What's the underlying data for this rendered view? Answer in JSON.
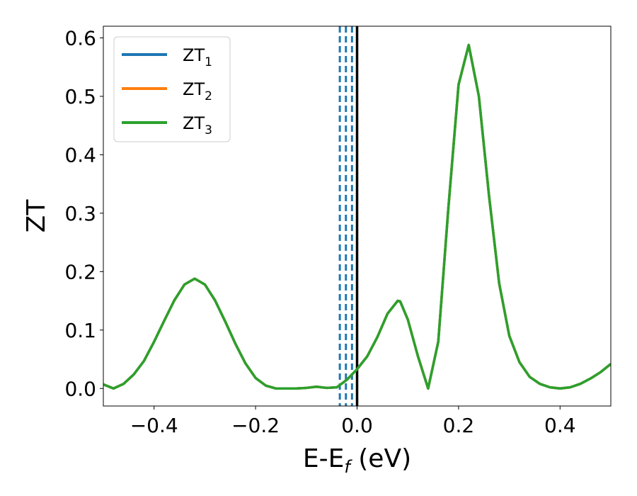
{
  "chart_data": {
    "type": "line",
    "xlabel": "E-E",
    "xlabel_sub": "f",
    "xlabel_unit": " (eV)",
    "ylabel": "ZT",
    "xlim": [
      -0.5,
      0.5
    ],
    "ylim": [
      -0.03,
      0.62
    ],
    "xticks": [
      -0.4,
      -0.2,
      0.0,
      0.2,
      0.4
    ],
    "xtick_labels": [
      "−0.4",
      "−0.2",
      "0.0",
      "0.2",
      "0.4"
    ],
    "yticks": [
      0.0,
      0.1,
      0.2,
      0.3,
      0.4,
      0.5,
      0.6
    ],
    "ytick_labels": [
      "0.0",
      "0.1",
      "0.2",
      "0.3",
      "0.4",
      "0.5",
      "0.6"
    ],
    "grid": false,
    "legend_position": "top-left",
    "x": [
      -0.5,
      -0.48,
      -0.46,
      -0.44,
      -0.42,
      -0.4,
      -0.38,
      -0.36,
      -0.34,
      -0.32,
      -0.3,
      -0.28,
      -0.26,
      -0.24,
      -0.22,
      -0.2,
      -0.18,
      -0.16,
      -0.14,
      -0.12,
      -0.1,
      -0.08,
      -0.06,
      -0.04,
      -0.02,
      0.0,
      0.02,
      0.04,
      0.06,
      0.08,
      0.085,
      0.1,
      0.12,
      0.14,
      0.16,
      0.18,
      0.2,
      0.22,
      0.24,
      0.26,
      0.28,
      0.3,
      0.32,
      0.34,
      0.36,
      0.38,
      0.4,
      0.42,
      0.44,
      0.46,
      0.48,
      0.5
    ],
    "series": [
      {
        "name": "ZT",
        "name_sub": "1",
        "color": "#1f77b4",
        "values": [
          0.007,
          0.0,
          0.008,
          0.024,
          0.047,
          0.08,
          0.116,
          0.151,
          0.178,
          0.188,
          0.178,
          0.151,
          0.115,
          0.077,
          0.043,
          0.018,
          0.005,
          0.0,
          0.0,
          0.0,
          0.001,
          0.003,
          0.001,
          0.002,
          0.015,
          0.033,
          0.055,
          0.088,
          0.128,
          0.15,
          0.149,
          0.118,
          0.055,
          0.0,
          0.08,
          0.31,
          0.52,
          0.588,
          0.5,
          0.33,
          0.18,
          0.09,
          0.045,
          0.02,
          0.008,
          0.002,
          0.0,
          0.002,
          0.008,
          0.017,
          0.028,
          0.042
        ]
      },
      {
        "name": "ZT",
        "name_sub": "2",
        "color": "#ff7f0e",
        "values": [
          0.007,
          0.0,
          0.008,
          0.024,
          0.047,
          0.08,
          0.116,
          0.151,
          0.178,
          0.188,
          0.178,
          0.151,
          0.115,
          0.077,
          0.043,
          0.018,
          0.005,
          0.0,
          0.0,
          0.0,
          0.001,
          0.003,
          0.001,
          0.002,
          0.015,
          0.033,
          0.055,
          0.088,
          0.128,
          0.15,
          0.149,
          0.118,
          0.055,
          0.0,
          0.08,
          0.31,
          0.52,
          0.588,
          0.5,
          0.33,
          0.18,
          0.09,
          0.045,
          0.02,
          0.008,
          0.002,
          0.0,
          0.002,
          0.008,
          0.017,
          0.028,
          0.042
        ]
      },
      {
        "name": "ZT",
        "name_sub": "3",
        "color": "#2ca02c",
        "values": [
          0.007,
          0.0,
          0.008,
          0.024,
          0.047,
          0.08,
          0.116,
          0.151,
          0.178,
          0.188,
          0.178,
          0.151,
          0.115,
          0.077,
          0.043,
          0.018,
          0.005,
          0.0,
          0.0,
          0.0,
          0.001,
          0.003,
          0.001,
          0.002,
          0.015,
          0.033,
          0.055,
          0.088,
          0.128,
          0.15,
          0.149,
          0.118,
          0.055,
          0.0,
          0.08,
          0.31,
          0.52,
          0.588,
          0.5,
          0.33,
          0.18,
          0.09,
          0.045,
          0.02,
          0.008,
          0.002,
          0.0,
          0.002,
          0.008,
          0.017,
          0.028,
          0.042
        ]
      }
    ],
    "vlines": [
      {
        "x": -0.034,
        "color": "#1f77b4",
        "style": "dashed"
      },
      {
        "x": -0.022,
        "color": "#1f77b4",
        "style": "dashed"
      },
      {
        "x": -0.01,
        "color": "#1f77b4",
        "style": "dashed"
      },
      {
        "x": 0.0,
        "color": "#000000",
        "style": "solid"
      }
    ]
  }
}
